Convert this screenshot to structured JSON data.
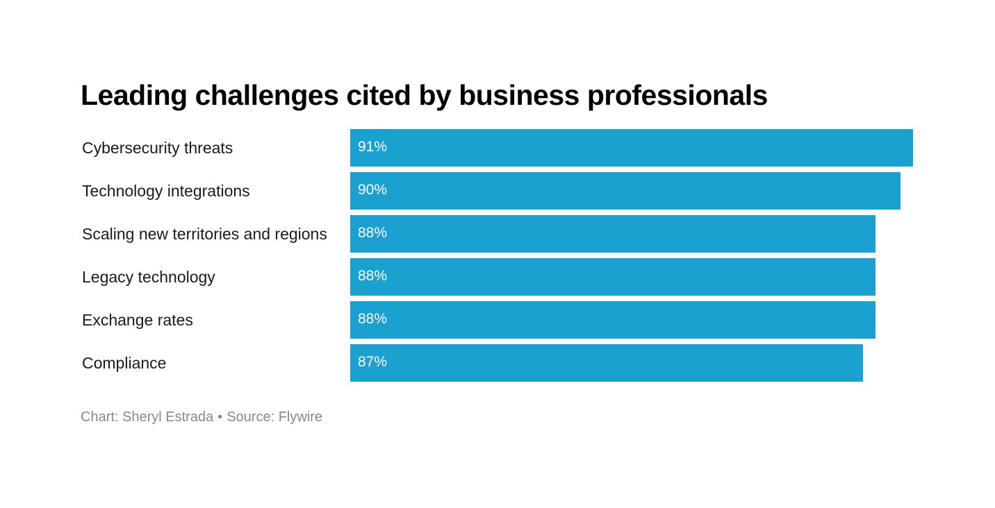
{
  "chart_data": {
    "type": "bar",
    "orientation": "horizontal",
    "title": "Leading challenges cited by business professionals",
    "categories": [
      "Cybersecurity threats",
      "Technology integrations",
      "Scaling new territories and regions",
      "Legacy technology",
      "Exchange rates",
      "Compliance"
    ],
    "values": [
      91,
      90,
      88,
      88,
      88,
      87
    ],
    "value_labels": [
      "91%",
      "90%",
      "88%",
      "88%",
      "88%",
      "87%"
    ],
    "unit": "%",
    "xlim": [
      0,
      91
    ],
    "grid": false,
    "legend": "none",
    "bar_color": "#1aa1cf"
  },
  "footer": {
    "credit": "Chart: Sheryl Estrada",
    "separator": "•",
    "source": "Source: Flywire"
  }
}
